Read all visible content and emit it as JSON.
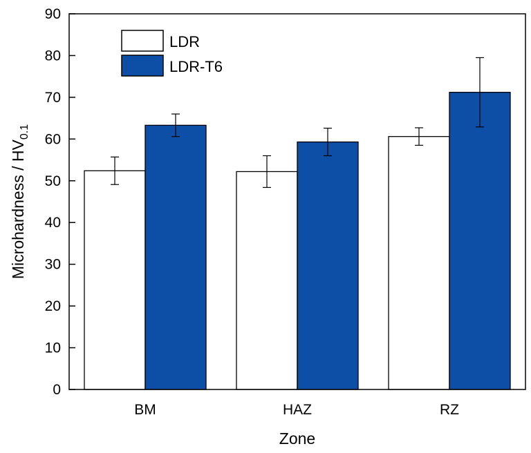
{
  "chart_data": {
    "type": "bar",
    "categories": [
      "BM",
      "HAZ",
      "RZ"
    ],
    "series": [
      {
        "name": "LDR",
        "values": [
          52.4,
          52.2,
          60.6
        ],
        "errors": [
          3.3,
          3.8,
          2.1
        ],
        "color": "#ffffff"
      },
      {
        "name": "LDR-T6",
        "values": [
          63.3,
          59.3,
          71.2
        ],
        "errors": [
          2.7,
          3.3,
          8.3
        ],
        "color": "#0d4ea6"
      }
    ],
    "xlabel": "Zone",
    "ylabel": {
      "text": "Microhardness / HV",
      "subscript": "0.1"
    },
    "ylim": [
      0,
      90
    ],
    "yticks": [
      0,
      10,
      20,
      30,
      40,
      50,
      60,
      70,
      80,
      90
    ],
    "grid": false,
    "legend": {
      "position": "top-left"
    }
  }
}
